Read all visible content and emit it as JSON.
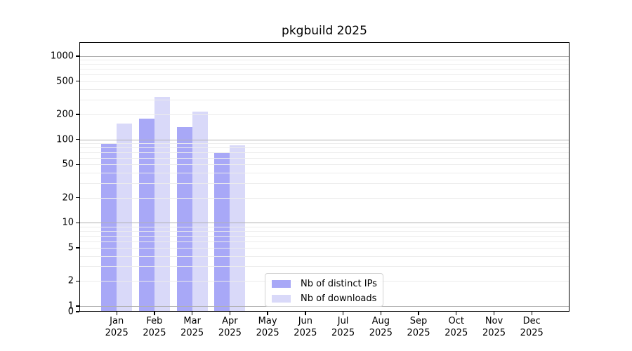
{
  "chart_data": {
    "type": "bar",
    "title": "pkgbuild 2025",
    "yscale": "symlog",
    "grid": "both",
    "categories": [
      "Jan",
      "Feb",
      "Mar",
      "Apr",
      "May",
      "Jun",
      "Jul",
      "Aug",
      "Sep",
      "Oct",
      "Nov",
      "Dec"
    ],
    "year_label": "2025",
    "y_ticks": [
      0,
      1,
      2,
      5,
      10,
      20,
      50,
      100,
      200,
      500,
      1000
    ],
    "ylim": [
      0,
      1500
    ],
    "legend_position": "lower-center-inside",
    "series": [
      {
        "name": "Nb of distinct IPs",
        "color": "#a8a8f7",
        "values": [
          90,
          178,
          140,
          68,
          0,
          0,
          0,
          0,
          0,
          0,
          0,
          0
        ]
      },
      {
        "name": "Nb of downloads",
        "color": "#d9d9f9",
        "values": [
          155,
          325,
          215,
          85,
          0,
          0,
          0,
          0,
          0,
          0,
          0,
          0
        ]
      }
    ]
  }
}
